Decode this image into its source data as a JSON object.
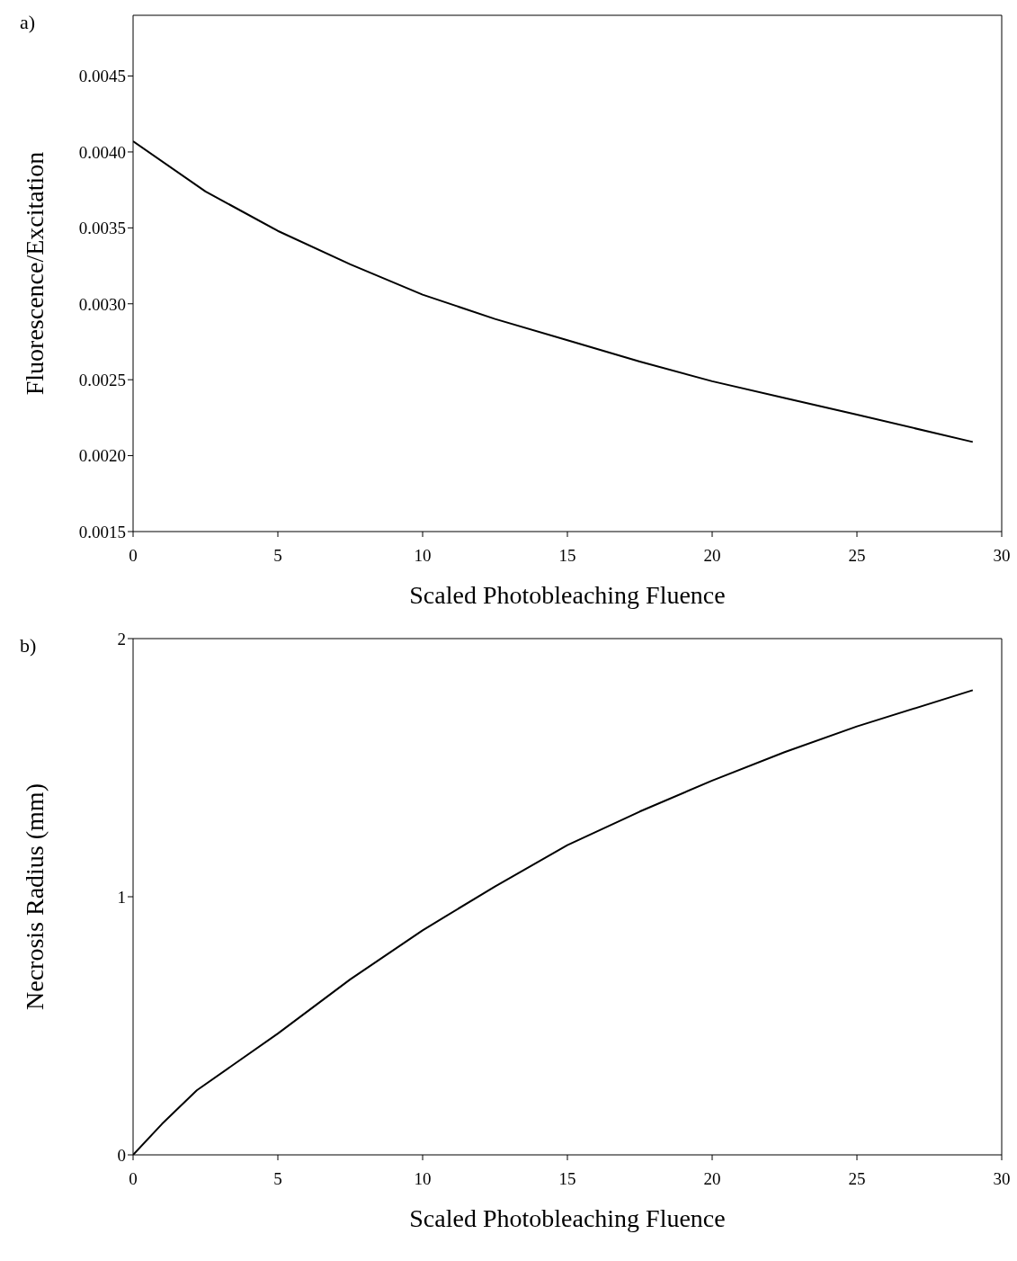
{
  "chart_data": [
    {
      "type": "line",
      "annotations": [
        "a)"
      ],
      "xlabel": "Scaled Photobleaching Fluence",
      "ylabel": "Fluorescence/Excitation",
      "x": [
        0,
        2.5,
        5,
        7.5,
        10,
        12.5,
        15,
        17.5,
        20,
        22.5,
        25,
        29
      ],
      "series": [
        {
          "color": "#000000",
          "values": [
            0.00407,
            0.00374,
            0.00348,
            0.00326,
            0.00306,
            0.0029,
            0.00276,
            0.00262,
            0.00249,
            0.00238,
            0.00227,
            0.00209
          ]
        }
      ],
      "xlim": [
        0,
        30
      ],
      "xticks": [
        0,
        5,
        10,
        15,
        20,
        25,
        30
      ],
      "ylim": [
        0.0015,
        0.0049
      ],
      "yticks": [
        {
          "value": 0.0015,
          "label": "0.0015"
        },
        {
          "value": 0.002,
          "label": "0.0020"
        },
        {
          "value": 0.0025,
          "label": "0.0025"
        },
        {
          "value": 0.003,
          "label": "0.0030"
        },
        {
          "value": 0.0035,
          "label": "0.0035"
        },
        {
          "value": 0.004,
          "label": "0.0040"
        },
        {
          "value": 0.0045,
          "label": "0.0045"
        }
      ],
      "grid": false,
      "legend": false,
      "marker": "none",
      "line_style": "solid"
    },
    {
      "type": "line",
      "annotations": [
        "b)"
      ],
      "xlabel": "Scaled Photobleaching Fluence",
      "ylabel": "Necrosis Radius (mm)",
      "x": [
        0,
        1,
        2.2,
        5,
        7.5,
        10,
        12.5,
        15,
        17.5,
        20,
        22.5,
        25,
        29
      ],
      "series": [
        {
          "color": "#000000",
          "values": [
            0,
            0.12,
            0.25,
            0.47,
            0.68,
            0.87,
            1.04,
            1.2,
            1.33,
            1.45,
            1.56,
            1.66,
            1.8
          ]
        }
      ],
      "xlim": [
        0,
        30
      ],
      "xticks": [
        0,
        5,
        10,
        15,
        20,
        25,
        30
      ],
      "ylim": [
        0,
        2
      ],
      "yticks": [
        0,
        1,
        2
      ],
      "grid": false,
      "legend": false,
      "marker": "none",
      "line_style": "solid"
    }
  ]
}
